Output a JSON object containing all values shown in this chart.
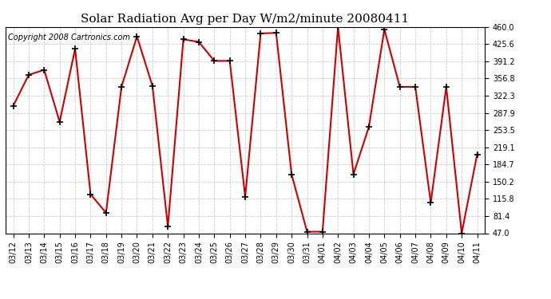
{
  "title": "Solar Radiation Avg per Day W/m2/minute 20080411",
  "copyright": "Copyright 2008 Cartronics.com",
  "labels": [
    "03/12",
    "03/13",
    "03/14",
    "03/15",
    "03/16",
    "03/17",
    "03/18",
    "03/19",
    "03/20",
    "03/21",
    "03/22",
    "03/23",
    "03/24",
    "03/25",
    "03/26",
    "03/27",
    "03/28",
    "03/29",
    "03/30",
    "03/31",
    "04/01",
    "04/02",
    "04/03",
    "04/04",
    "04/05",
    "04/06",
    "04/07",
    "04/08",
    "04/09",
    "04/10",
    "04/11"
  ],
  "values": [
    302,
    364,
    374,
    270,
    416,
    125,
    88,
    340,
    441,
    342,
    60,
    435,
    430,
    392,
    392,
    120,
    447,
    448,
    165,
    50,
    50,
    460,
    165,
    260,
    455,
    340,
    340,
    108,
    340,
    47,
    205
  ],
  "line_color": "#cc0000",
  "bg_color": "#ffffff",
  "grid_color": "#cccccc",
  "ylim": [
    47.0,
    460.0
  ],
  "yticks": [
    47.0,
    81.4,
    115.8,
    150.2,
    184.7,
    219.1,
    253.5,
    287.9,
    322.3,
    356.8,
    391.2,
    425.6,
    460.0
  ],
  "title_fontsize": 11,
  "copyright_fontsize": 7
}
